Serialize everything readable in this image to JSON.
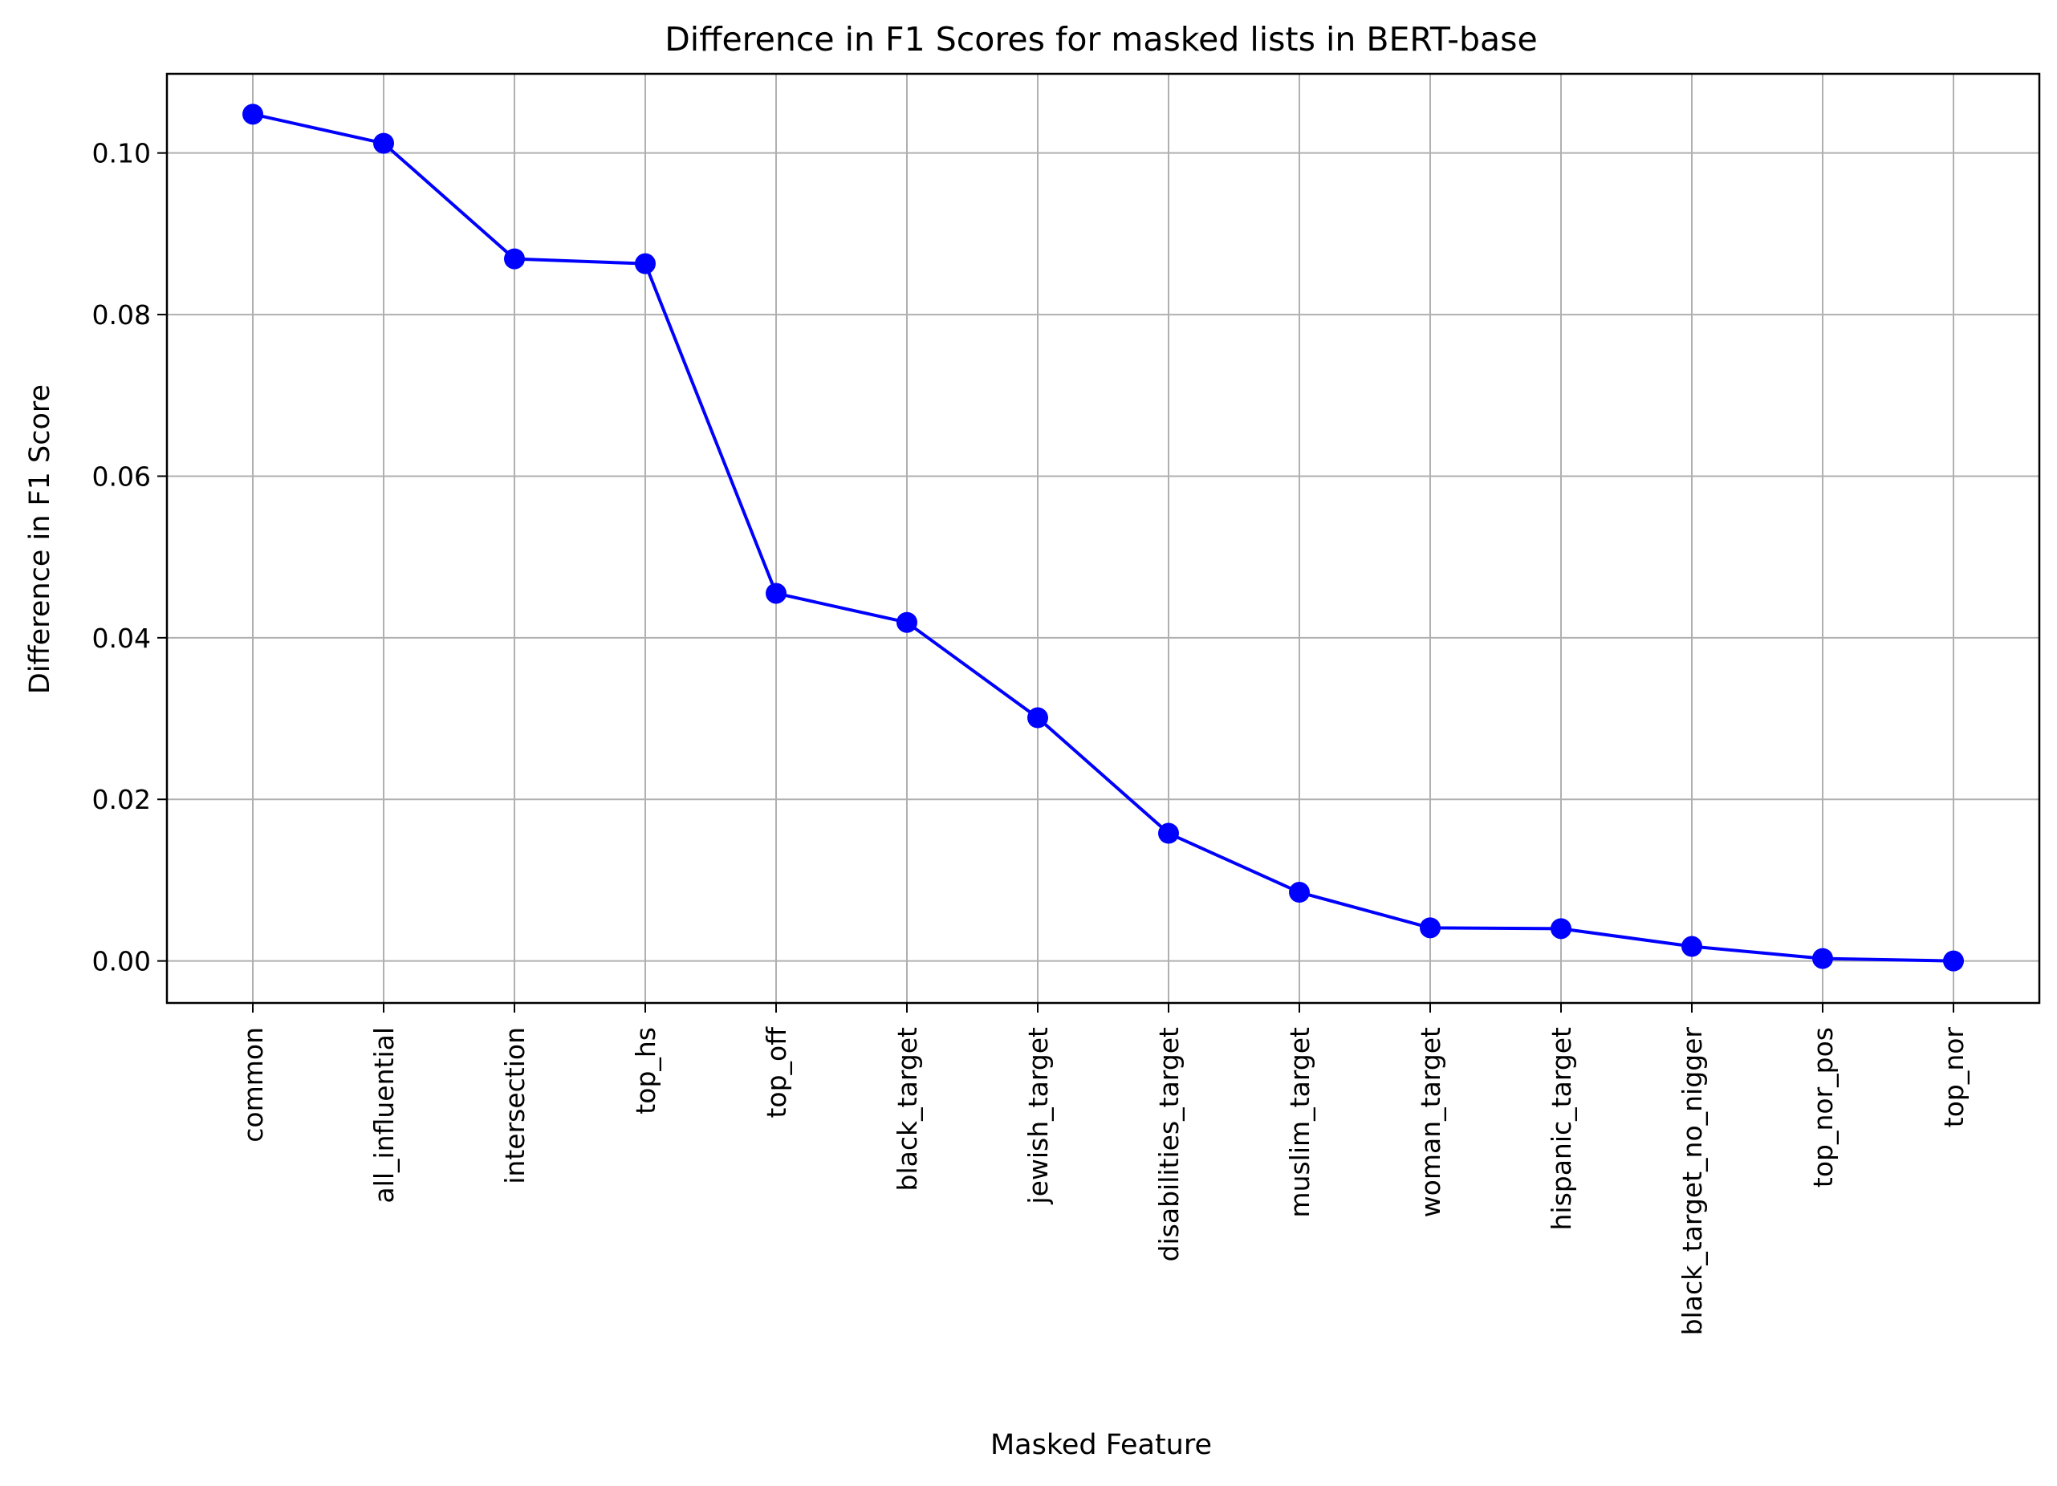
{
  "chart_data": {
    "type": "line",
    "title": "Difference in F1 Scores for masked lists in BERT-base",
    "xlabel": "Masked Feature",
    "ylabel": "Difference in F1 Score",
    "categories": [
      "common",
      "all_influential",
      "intersection",
      "top_hs",
      "top_off",
      "black_target",
      "jewish_target",
      "disabilities_target",
      "muslim_target",
      "woman_target",
      "hispanic_target",
      "black_target_no_nigger",
      "top_nor_pos",
      "top_nor"
    ],
    "series": [
      {
        "values": [
          0.1048,
          0.1012,
          0.0869,
          0.0863,
          0.0455,
          0.0419,
          0.0301,
          0.0158,
          0.0085,
          0.0041,
          0.004,
          0.0018,
          0.0003,
          0.0
        ],
        "color": "#0000ff",
        "marker": "circle"
      }
    ],
    "ylim": [
      -0.0052,
      0.1098
    ],
    "yticks": [
      0.0,
      0.02,
      0.04,
      0.06,
      0.08,
      0.1
    ],
    "ytick_labels": [
      "0.00",
      "0.02",
      "0.04",
      "0.06",
      "0.08",
      "0.10"
    ],
    "grid": true,
    "grid_color": "#b0b0b0",
    "legend": false
  }
}
